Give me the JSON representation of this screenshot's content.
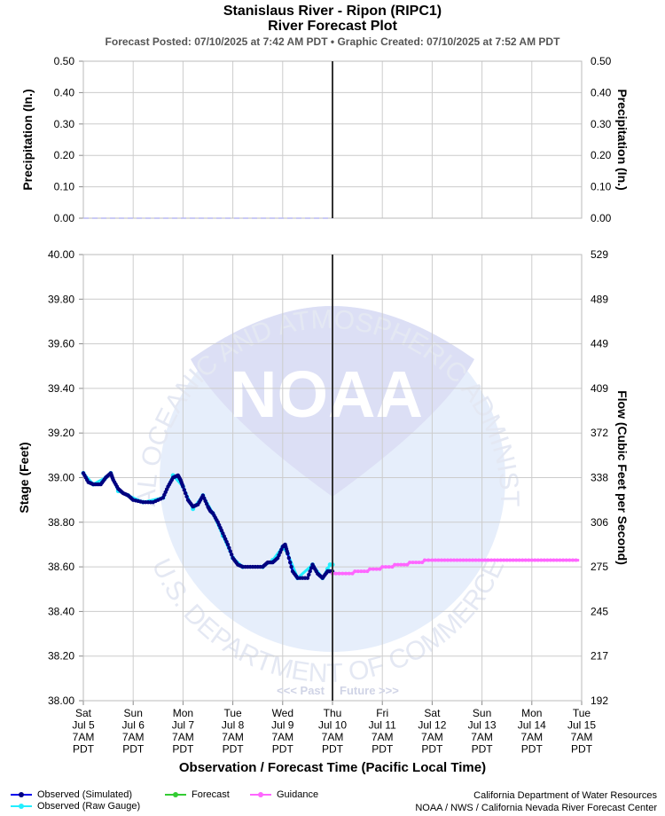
{
  "header": {
    "title": "Stanislaus River - Ripon (RIPC1)",
    "subtitle": "River Forecast Plot",
    "posted": "Forecast Posted: 07/10/2025 at 7:42 AM PDT",
    "separator": "•",
    "created": "Graphic Created: 07/10/2025 at 7:52 AM PDT"
  },
  "watermark": {
    "logo_text": "NOAA",
    "ring_top": "NATIONAL OCEANIC AND ATMOSPHERIC ADMINISTRATION",
    "ring_bottom": "U.S. DEPARTMENT OF COMMERCE"
  },
  "legend": {
    "observed_sim": "Observed (Simulated)",
    "observed_raw": "Observed (Raw Gauge)",
    "forecast": "Forecast",
    "guidance": "Guidance"
  },
  "credits": {
    "line1": "California Department of Water Resources",
    "line2": "NOAA / NWS / California Nevada River Forecast Center"
  },
  "colors": {
    "observed_sim": "#0000ee",
    "observed_sim_marker": "#000080",
    "observed_raw": "#22eeff",
    "forecast": "#33cc33",
    "guidance": "#ff66ff",
    "now_line": "#333333",
    "grid": "#cccccc",
    "watermark": "#e8eefb"
  },
  "chart_data": [
    {
      "type": "line",
      "panel": "precipitation",
      "ylabel": "Precipitation (In.)",
      "ylabel_right": "Precipitation (In.)",
      "ylim": [
        0,
        0.5
      ],
      "yticks": [
        "0.00",
        "0.10",
        "0.20",
        "0.30",
        "0.40",
        "0.50"
      ],
      "grid": true,
      "series": [
        {
          "name": "Observed (Simulated)",
          "x": [
            0,
            5
          ],
          "y": [
            0,
            0
          ]
        }
      ]
    },
    {
      "type": "line",
      "panel": "stage",
      "ylabel": "Stage (Feet)",
      "ylabel_right": "Flow (Cubic Feet per Second)",
      "ylim": [
        38.0,
        40.0
      ],
      "yticks": [
        "38.00",
        "38.20",
        "38.40",
        "38.60",
        "38.80",
        "39.00",
        "39.20",
        "39.40",
        "39.60",
        "39.80",
        "40.00"
      ],
      "right_ticks": [
        "192",
        "217",
        "245",
        "275",
        "306",
        "338",
        "372",
        "409",
        "449",
        "489",
        "529"
      ],
      "xlabel": "Observation / Forecast Time (Pacific Local Time)",
      "xlim": [
        0,
        10
      ],
      "x_tick_labels": [
        [
          "Sat",
          "Jul 5",
          "7AM",
          "PDT"
        ],
        [
          "Sun",
          "Jul 6",
          "7AM",
          "PDT"
        ],
        [
          "Mon",
          "Jul 7",
          "7AM",
          "PDT"
        ],
        [
          "Tue",
          "Jul 8",
          "7AM",
          "PDT"
        ],
        [
          "Wed",
          "Jul 9",
          "7AM",
          "PDT"
        ],
        [
          "Thu",
          "Jul 10",
          "7AM",
          "PDT"
        ],
        [
          "Fri",
          "Jul 11",
          "7AM",
          "PDT"
        ],
        [
          "Sat",
          "Jul 12",
          "7AM",
          "PDT"
        ],
        [
          "Sun",
          "Jul 13",
          "7AM",
          "PDT"
        ],
        [
          "Mon",
          "Jul 14",
          "7AM",
          "PDT"
        ],
        [
          "Tue",
          "Jul 15",
          "7AM",
          "PDT"
        ]
      ],
      "now": 5,
      "past_label": "<<< Past",
      "future_label": "Future >>>",
      "grid": true,
      "series": [
        {
          "name": "Observed (Simulated)",
          "x": [
            0,
            0.1,
            0.2,
            0.35,
            0.45,
            0.55,
            0.6,
            0.7,
            0.8,
            0.9,
            1.0,
            1.2,
            1.4,
            1.6,
            1.7,
            1.8,
            1.9,
            1.95,
            2.0,
            2.1,
            2.2,
            2.3,
            2.4,
            2.5,
            2.55,
            2.6,
            2.7,
            2.8,
            2.9,
            3.0,
            3.1,
            3.2,
            3.4,
            3.6,
            3.7,
            3.8,
            3.9,
            4.0,
            4.05,
            4.1,
            4.2,
            4.3,
            4.5,
            4.6,
            4.7,
            4.8,
            4.9,
            5.0
          ],
          "y": [
            39.02,
            38.98,
            38.97,
            38.97,
            39.0,
            39.02,
            38.99,
            38.95,
            38.93,
            38.92,
            38.9,
            38.89,
            38.89,
            38.91,
            38.96,
            39.0,
            39.01,
            38.99,
            38.96,
            38.9,
            38.87,
            38.88,
            38.92,
            38.87,
            38.85,
            38.84,
            38.8,
            38.75,
            38.7,
            38.64,
            38.61,
            38.6,
            38.6,
            38.6,
            38.62,
            38.62,
            38.64,
            38.69,
            38.7,
            38.66,
            38.58,
            38.55,
            38.55,
            38.61,
            38.57,
            38.55,
            38.58,
            38.58
          ]
        },
        {
          "name": "Observed (Raw Gauge)",
          "x": [
            0,
            0.2,
            0.45,
            0.55,
            0.7,
            0.9,
            1.2,
            1.6,
            1.8,
            2.0,
            2.2,
            2.4,
            2.6,
            2.8,
            3.0,
            3.2,
            3.6,
            3.8,
            4.0,
            4.1,
            4.3,
            4.6,
            4.8,
            4.9,
            4.95,
            5.0
          ],
          "y": [
            39.02,
            38.97,
            39.0,
            39.02,
            38.94,
            38.92,
            38.89,
            38.91,
            39.01,
            38.96,
            38.86,
            38.92,
            38.84,
            38.74,
            38.64,
            38.6,
            38.6,
            38.63,
            38.69,
            38.66,
            38.55,
            38.61,
            38.55,
            38.59,
            38.61,
            38.61
          ]
        },
        {
          "name": "Guidance",
          "x": [
            5.0,
            5.4,
            5.45,
            5.7,
            5.75,
            5.95,
            6.0,
            6.2,
            6.25,
            6.5,
            6.55,
            6.8,
            6.85,
            7.0,
            7.5,
            8.0,
            8.5,
            9.0,
            9.5,
            9.95
          ],
          "y": [
            38.57,
            38.57,
            38.58,
            38.58,
            38.59,
            38.59,
            38.6,
            38.6,
            38.61,
            38.61,
            38.62,
            38.62,
            38.63,
            38.63,
            38.63,
            38.63,
            38.63,
            38.63,
            38.63,
            38.63
          ]
        }
      ]
    }
  ]
}
